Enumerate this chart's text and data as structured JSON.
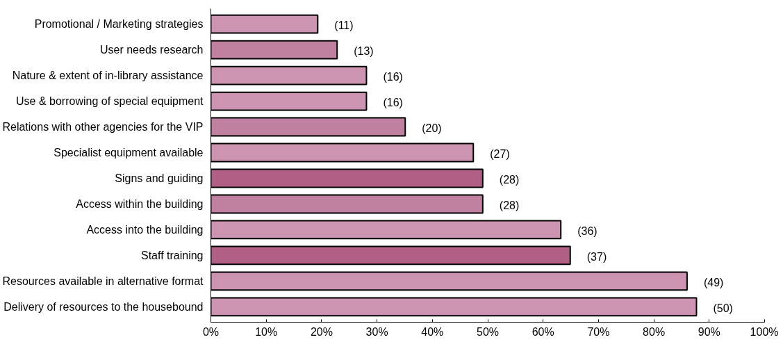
{
  "chart_data": {
    "type": "bar",
    "orientation": "horizontal",
    "categories": [
      "Promotional / Marketing strategies",
      "User needs research",
      "Nature & extent of in-library assistance",
      "Use & borrowing of special equipment",
      "Relations with other agencies for the VIP",
      "Specialist equipment available",
      "Signs and guiding",
      "Access within the building",
      "Access into the building",
      "Staff training",
      "Resources available in alternative format",
      "Delivery of resources to the housebound"
    ],
    "values": [
      19.3,
      22.8,
      28.1,
      28.1,
      35.1,
      47.4,
      49.1,
      49.1,
      63.2,
      64.9,
      86.0,
      87.7
    ],
    "colors": [
      "#cc94b0",
      "#c0809f",
      "#cc94b0",
      "#cc94b0",
      "#c0809f",
      "#cc94b0",
      "#b06085",
      "#c0809f",
      "#cc94b0",
      "#b06085",
      "#cc94b0",
      "#cc94b0"
    ],
    "annotations": [
      {
        "text": "(11)",
        "x": 19.3,
        "y": "Promotional / Marketing strategies"
      },
      {
        "text": "(13)",
        "x": 22.8,
        "y": "User needs research"
      },
      {
        "text": "(16)",
        "x": 28.1,
        "y": "Nature & extent of in-library assistance"
      },
      {
        "text": "(16)",
        "x": 28.1,
        "y": "Use & borrowing of special equipment"
      },
      {
        "text": "(20)",
        "x": 35.1,
        "y": "Relations with other agencies for the VIP"
      },
      {
        "text": "(27)",
        "x": 47.4,
        "y": "Specialist equipment available"
      },
      {
        "text": "(28)",
        "x": 49.1,
        "y": "Signs and guiding"
      },
      {
        "text": "(28)",
        "x": 49.1,
        "y": "Access within the building"
      },
      {
        "text": "(36)",
        "x": 63.2,
        "y": "Access into the building"
      },
      {
        "text": "(37)",
        "x": 64.9,
        "y": "Staff training"
      },
      {
        "text": "(49)",
        "x": 86.0,
        "y": "Resources available in alternative format"
      },
      {
        "text": "(50)",
        "x": 87.7,
        "y": "Delivery of resources to the housebound"
      }
    ],
    "xlim": [
      0,
      100
    ],
    "xticks": [
      {
        "value": 0,
        "label": "0%"
      },
      {
        "value": 10,
        "label": "10%"
      },
      {
        "value": 20,
        "label": "20%"
      },
      {
        "value": 30,
        "label": "30%"
      },
      {
        "value": 40,
        "label": "40%"
      },
      {
        "value": 50,
        "label": "50%"
      },
      {
        "value": 60,
        "label": "60%"
      },
      {
        "value": 70,
        "label": "70%"
      },
      {
        "value": 80,
        "label": "80%"
      },
      {
        "value": 90,
        "label": "90%"
      },
      {
        "value": 100,
        "label": "100%"
      }
    ],
    "grid": false
  }
}
